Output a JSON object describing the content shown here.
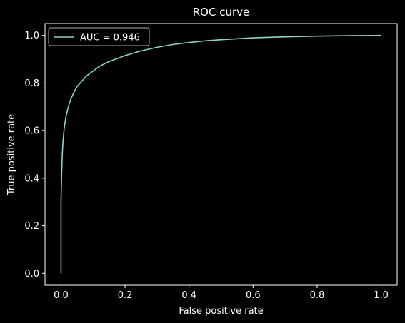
{
  "chart_data": {
    "type": "line",
    "title": "ROC curve",
    "xlabel": "False positive rate",
    "ylabel": "True positive rate",
    "xlim": [
      -0.05,
      1.05
    ],
    "ylim": [
      -0.05,
      1.05
    ],
    "grid": false,
    "legend_position": "top-left",
    "xticks": [
      "0.0",
      "0.2",
      "0.4",
      "0.6",
      "0.8",
      "1.0"
    ],
    "yticks": [
      "0.0",
      "0.2",
      "0.4",
      "0.6",
      "0.8",
      "1.0"
    ],
    "series": [
      {
        "name": "AUC = 0.946",
        "color": "#8dd3c7",
        "x": [
          0.0,
          0.0,
          0.002,
          0.004,
          0.006,
          0.008,
          0.01,
          0.015,
          0.02,
          0.025,
          0.03,
          0.04,
          0.05,
          0.06,
          0.07,
          0.08,
          0.1,
          0.12,
          0.15,
          0.18,
          0.2,
          0.25,
          0.3,
          0.35,
          0.4,
          0.45,
          0.5,
          0.6,
          0.7,
          0.8,
          0.9,
          1.0
        ],
        "y": [
          0.0,
          0.3,
          0.42,
          0.5,
          0.55,
          0.58,
          0.61,
          0.655,
          0.685,
          0.71,
          0.73,
          0.76,
          0.785,
          0.8,
          0.815,
          0.83,
          0.85,
          0.87,
          0.89,
          0.905,
          0.915,
          0.935,
          0.95,
          0.962,
          0.97,
          0.977,
          0.982,
          0.99,
          0.994,
          0.997,
          0.999,
          1.0
        ]
      }
    ]
  }
}
